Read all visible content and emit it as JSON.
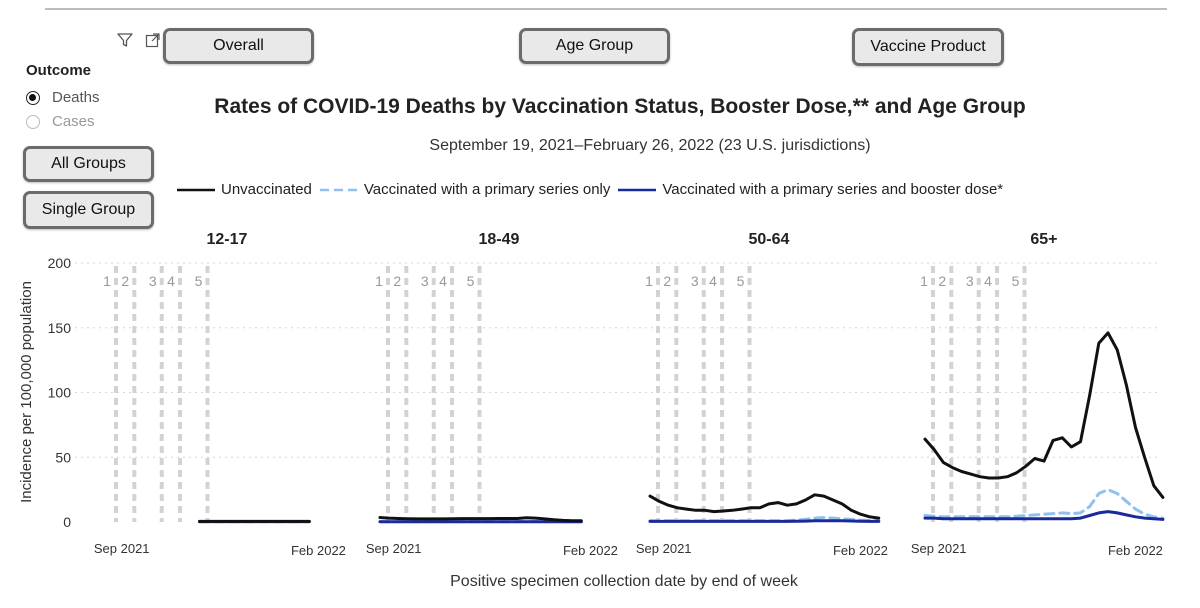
{
  "buttons": {
    "overall": "Overall",
    "age_group": "Age Group",
    "vaccine_product": "Vaccine Product",
    "all_groups": "All Groups",
    "single_group": "Single Group"
  },
  "outcome": {
    "title": "Outcome",
    "options": [
      "Deaths",
      "Cases"
    ],
    "selected": "Deaths"
  },
  "icons": [
    "filter-icon",
    "focus-mode-icon"
  ],
  "colors": {
    "unvaccinated": "#111111",
    "primary_only": "#8fc1ef",
    "booster": "#1a2a9a",
    "gridline": "#d6d6d6",
    "dose_marker": "#d3d3d3"
  },
  "chart_data": {
    "type": "line",
    "title": "Rates of COVID-19 Deaths by Vaccination Status, Booster Dose,** and Age Group",
    "subtitle": "September 19, 2021–February 26, 2022 (23 U.S. jurisdictions)",
    "xlabel": "Positive specimen collection date by end of week",
    "ylabel": "Incidence per 100,000 population",
    "ylim": [
      0,
      200
    ],
    "yticks": [
      0,
      50,
      100,
      150,
      200
    ],
    "grid": true,
    "legend_position": "top",
    "legend": [
      {
        "label": "Unvaccinated",
        "style": "solid",
        "color": "#111111"
      },
      {
        "label": "Vaccinated with a primary series only",
        "style": "dashed",
        "color": "#8fc1ef"
      },
      {
        "label": "Vaccinated with a primary series and booster dose*",
        "style": "solid",
        "color": "#1a2a9a"
      }
    ],
    "dose_markers": [
      "1",
      "2",
      "3",
      "4",
      "5"
    ],
    "dose_marker_weeks": [
      0,
      2,
      5,
      7,
      10
    ],
    "x_axis_labels": [
      "Sep 2021",
      "Feb 2022"
    ],
    "panels": [
      {
        "title": "12-17",
        "series": [
          {
            "name": "Unvaccinated",
            "start_week": 10,
            "values": [
              0.5,
              0.5,
              0.5,
              0.5,
              0.5,
              0.5,
              0.5,
              0.5,
              0.5,
              0.5,
              0.5,
              0.5,
              0.5
            ]
          },
          {
            "name": "Vaccinated with a primary series only",
            "start_week": 10,
            "values": [
              0.2,
              0.2,
              0.2,
              0.2,
              0.2,
              0.2,
              0.2,
              0.2,
              0.2,
              0.2,
              0.2,
              0.2,
              0.2
            ]
          },
          {
            "name": "Vaccinated with a primary series and booster dose*",
            "start_week": 10,
            "values": [
              0.3,
              0.3,
              0.3,
              0.3,
              0.3,
              0.3,
              0.3,
              0.3,
              0.3,
              0.3,
              0.3,
              0.3,
              0.3
            ]
          }
        ]
      },
      {
        "title": "18-49",
        "series": [
          {
            "name": "Unvaccinated",
            "start_week": 0,
            "values": [
              3.5,
              3,
              2.7,
              2.5,
              2.4,
              2.4,
              2.4,
              2.4,
              2.5,
              2.6,
              2.6,
              2.6,
              2.6,
              2.7,
              2.7,
              2.7,
              3.3,
              3,
              2.4,
              1.8,
              1.2,
              1,
              0.9
            ]
          },
          {
            "name": "Vaccinated with a primary series only",
            "start_week": 0,
            "values": [
              0.3,
              0.3,
              0.3,
              0.3,
              0.3,
              0.3,
              0.3,
              0.3,
              0.3,
              0.3,
              0.3,
              0.3,
              0.3,
              0.3,
              0.3,
              0.3,
              0.4,
              0.4,
              0.3,
              0.3,
              0.2,
              0.2,
              0.2
            ]
          },
          {
            "name": "Vaccinated with a primary series and booster dose*",
            "start_week": 0,
            "values": [
              0.2,
              0.2,
              0.2,
              0.2,
              0.2,
              0.2,
              0.2,
              0.2,
              0.2,
              0.2,
              0.2,
              0.2,
              0.2,
              0.2,
              0.2,
              0.2,
              0.2,
              0.2,
              0.2,
              0.2,
              0.2,
              0.2,
              0.2
            ]
          }
        ]
      },
      {
        "title": "50-64",
        "series": [
          {
            "name": "Unvaccinated",
            "start_week": 0,
            "values": [
              20,
              16,
              13,
              11,
              10,
              9,
              9,
              8,
              8.5,
              9,
              10,
              11,
              11,
              14,
              15,
              13,
              14,
              17,
              21,
              20,
              17,
              14,
              9,
              6,
              4,
              3
            ]
          },
          {
            "name": "Vaccinated with a primary series only",
            "start_week": 0,
            "values": [
              1,
              1,
              1,
              1,
              1,
              1,
              1,
              1,
              1,
              1,
              1,
              1,
              1,
              1,
              1,
              1,
              1.5,
              2,
              3,
              3.5,
              3,
              2.5,
              2,
              1.5,
              1.2,
              1
            ]
          },
          {
            "name": "Vaccinated with a primary series and booster dose*",
            "start_week": 0,
            "values": [
              0.5,
              0.5,
              0.5,
              0.5,
              0.5,
              0.5,
              0.5,
              0.5,
              0.5,
              0.5,
              0.5,
              0.5,
              0.5,
              0.5,
              0.5,
              0.5,
              0.6,
              0.7,
              0.9,
              1,
              1,
              0.9,
              0.8,
              0.6,
              0.5,
              0.5
            ]
          }
        ]
      },
      {
        "title": "65+",
        "series": [
          {
            "name": "Unvaccinated",
            "start_week": 0,
            "values": [
              64,
              56,
              46,
              42,
              39,
              37,
              35,
              34,
              34,
              35,
              38,
              43,
              49,
              47,
              63,
              65,
              58,
              62,
              98,
              138,
              146,
              133,
              106,
              73,
              50,
              28,
              19
            ]
          },
          {
            "name": "Vaccinated with a primary series only",
            "start_week": 0,
            "values": [
              5,
              4.5,
              4,
              4,
              4,
              4,
              4,
              4,
              4,
              4,
              4.5,
              5,
              5.5,
              6,
              6.5,
              7,
              6.5,
              7,
              12,
              22,
              25,
              22,
              16,
              10,
              6,
              4,
              3
            ]
          },
          {
            "name": "Vaccinated with a primary series and booster dose*",
            "start_week": 0,
            "values": [
              3,
              3,
              2.5,
              2.5,
              2.5,
              2.5,
              2.5,
              2.5,
              2.5,
              2.5,
              2.5,
              2.5,
              2.5,
              2.5,
              2.5,
              2.5,
              2.5,
              3,
              5,
              7,
              8,
              7,
              5.5,
              4,
              3,
              2.5,
              2
            ]
          }
        ]
      }
    ]
  }
}
